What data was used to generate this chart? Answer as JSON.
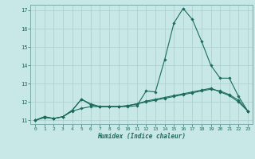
{
  "xlabel": "Humidex (Indice chaleur)",
  "background_color": "#c8e8e8",
  "grid_color": "#aacccc",
  "line_color": "#1a6b5a",
  "xlim": [
    -0.5,
    23.5
  ],
  "ylim": [
    10.8,
    17.3
  ],
  "yticks": [
    11,
    12,
    13,
    14,
    15,
    16,
    17
  ],
  "xticks": [
    0,
    1,
    2,
    3,
    4,
    5,
    6,
    7,
    8,
    9,
    10,
    11,
    12,
    13,
    14,
    15,
    16,
    17,
    18,
    19,
    20,
    21,
    22,
    23
  ],
  "line1_x": [
    0,
    1,
    2,
    3,
    4,
    5,
    6,
    7,
    8,
    9,
    10,
    11,
    12,
    13,
    14,
    15,
    16,
    17,
    18,
    19,
    20,
    21,
    22,
    23
  ],
  "line1_y": [
    11.0,
    11.2,
    11.1,
    11.2,
    11.55,
    12.15,
    11.9,
    11.75,
    11.75,
    11.75,
    11.75,
    11.8,
    12.6,
    12.55,
    14.3,
    16.3,
    17.1,
    16.5,
    15.3,
    14.0,
    13.3,
    13.3,
    12.3,
    11.5
  ],
  "line2_x": [
    0,
    1,
    2,
    3,
    4,
    5,
    6,
    7,
    8,
    9,
    10,
    11,
    12,
    13,
    14,
    15,
    16,
    17,
    18,
    19,
    20,
    21,
    22,
    23
  ],
  "line2_y": [
    11.0,
    11.2,
    11.1,
    11.2,
    11.55,
    12.15,
    11.85,
    11.75,
    11.75,
    11.75,
    11.8,
    11.9,
    12.05,
    12.15,
    12.25,
    12.35,
    12.45,
    12.55,
    12.65,
    12.75,
    12.55,
    12.35,
    12.0,
    11.5
  ],
  "line3_x": [
    0,
    1,
    2,
    3,
    4,
    5,
    6,
    7,
    8,
    9,
    10,
    11,
    12,
    13,
    14,
    15,
    16,
    17,
    18,
    19,
    20,
    21,
    22,
    23
  ],
  "line3_y": [
    11.0,
    11.15,
    11.1,
    11.2,
    11.5,
    11.65,
    11.75,
    11.75,
    11.75,
    11.75,
    11.8,
    11.9,
    12.0,
    12.1,
    12.2,
    12.3,
    12.4,
    12.5,
    12.6,
    12.7,
    12.6,
    12.4,
    12.1,
    11.5
  ]
}
